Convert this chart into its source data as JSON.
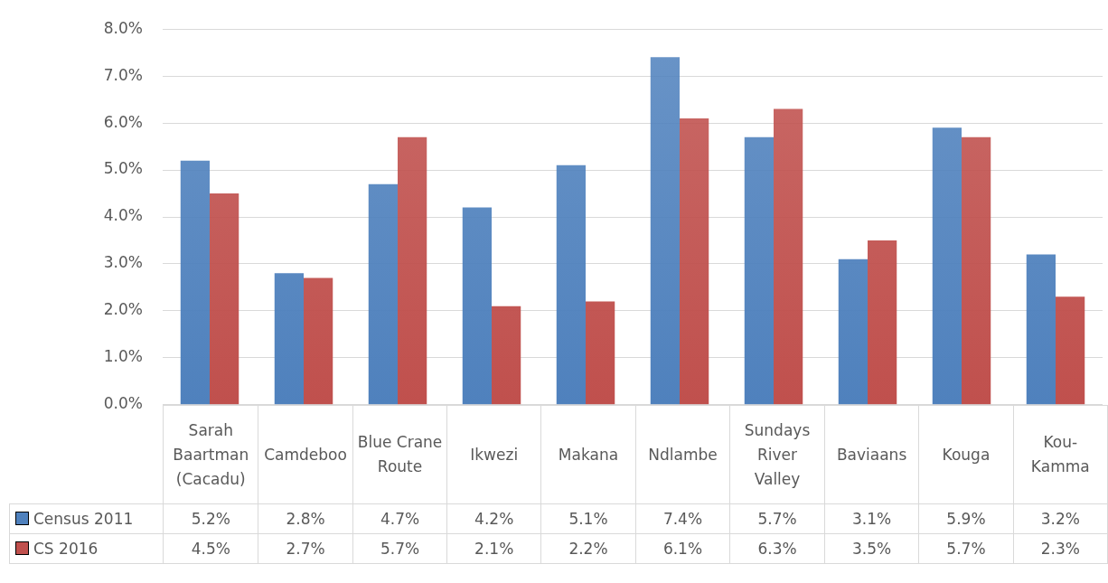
{
  "chart_data": {
    "type": "bar",
    "categories": [
      "Sarah Baartman (Cacadu)",
      "Camdeboo",
      "Blue Crane Route",
      "Ikwezi",
      "Makana",
      "Ndlambe",
      "Sundays River Valley",
      "Baviaans",
      "Kouga",
      "Kou-Kamma"
    ],
    "series": [
      {
        "name": "Census 2011",
        "color": "#4f81bd",
        "values": [
          5.2,
          2.8,
          4.7,
          4.2,
          5.1,
          7.4,
          5.7,
          3.1,
          5.9,
          3.2
        ],
        "value_labels": [
          "5.2%",
          "2.8%",
          "4.7%",
          "4.2%",
          "5.1%",
          "7.4%",
          "5.7%",
          "3.1%",
          "5.9%",
          "3.2%"
        ]
      },
      {
        "name": "CS 2016",
        "color": "#c0504d",
        "values": [
          4.5,
          2.7,
          5.7,
          2.1,
          2.2,
          6.1,
          6.3,
          3.5,
          5.7,
          2.3
        ],
        "value_labels": [
          "4.5%",
          "2.7%",
          "5.7%",
          "2.1%",
          "2.2%",
          "6.1%",
          "6.3%",
          "3.5%",
          "5.7%",
          "2.3%"
        ]
      }
    ],
    "ylim": [
      0,
      8
    ],
    "yticks": [
      {
        "value": 0,
        "label": "0.0%"
      },
      {
        "value": 1,
        "label": "1.0%"
      },
      {
        "value": 2,
        "label": "2.0%"
      },
      {
        "value": 3,
        "label": "3.0%"
      },
      {
        "value": 4,
        "label": "4.0%"
      },
      {
        "value": 5,
        "label": "5.0%"
      },
      {
        "value": 6,
        "label": "6.0%"
      },
      {
        "value": 7,
        "label": "7.0%"
      },
      {
        "value": 8,
        "label": "8.0%"
      }
    ],
    "grid": "y",
    "legend": "bottom"
  }
}
